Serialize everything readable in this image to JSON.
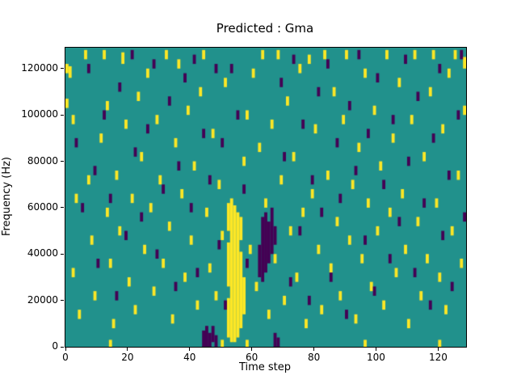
{
  "chart_data": {
    "type": "heatmap",
    "title": "Predicted : Gma",
    "xlabel": "Time step",
    "ylabel": "Frequency (Hz)",
    "xlim": [
      0,
      129
    ],
    "ylim": [
      0,
      129000
    ],
    "xticks": [
      0,
      20,
      40,
      60,
      80,
      100,
      120
    ],
    "yticks": [
      0,
      20000,
      40000,
      60000,
      80000,
      100000,
      120000
    ],
    "grid": false,
    "legend": false,
    "colors": {
      "background": "#21918c",
      "high": "#fde725",
      "low": "#440154"
    },
    "freq_unit_hz": 1000,
    "yellow_runs": [
      [
        0,
        103,
        106
      ],
      [
        0,
        118,
        121
      ],
      [
        1,
        116,
        120
      ],
      [
        2,
        96,
        99
      ],
      [
        2,
        30,
        33
      ],
      [
        3,
        62,
        65
      ],
      [
        4,
        12,
        15
      ],
      [
        6,
        124,
        127
      ],
      [
        7,
        70,
        73
      ],
      [
        8,
        44,
        47
      ],
      [
        9,
        20,
        23
      ],
      [
        11,
        88,
        91
      ],
      [
        12,
        124,
        127
      ],
      [
        13,
        102,
        105
      ],
      [
        13,
        56,
        59
      ],
      [
        14,
        34,
        37
      ],
      [
        14,
        0,
        2
      ],
      [
        15,
        8,
        11
      ],
      [
        16,
        72,
        75
      ],
      [
        17,
        48,
        51
      ],
      [
        18,
        122,
        126
      ],
      [
        19,
        94,
        97
      ],
      [
        20,
        26,
        29
      ],
      [
        21,
        62,
        65
      ],
      [
        22,
        14,
        17
      ],
      [
        23,
        106,
        109
      ],
      [
        24,
        80,
        83
      ],
      [
        25,
        40,
        43
      ],
      [
        26,
        116,
        119
      ],
      [
        27,
        58,
        61
      ],
      [
        28,
        22,
        25
      ],
      [
        29,
        96,
        99
      ],
      [
        30,
        70,
        73
      ],
      [
        31,
        34,
        37
      ],
      [
        32,
        124,
        127
      ],
      [
        33,
        50,
        53
      ],
      [
        34,
        10,
        13
      ],
      [
        35,
        86,
        89
      ],
      [
        36,
        120,
        123
      ],
      [
        37,
        64,
        67
      ],
      [
        38,
        28,
        31
      ],
      [
        39,
        100,
        103
      ],
      [
        40,
        44,
        47
      ],
      [
        41,
        76,
        79
      ],
      [
        42,
        16,
        19
      ],
      [
        43,
        108,
        111
      ],
      [
        44,
        124,
        127
      ],
      [
        45,
        56,
        59
      ],
      [
        46,
        32,
        35
      ],
      [
        47,
        90,
        93
      ],
      [
        48,
        20,
        23
      ],
      [
        49,
        68,
        71
      ],
      [
        50,
        0,
        2
      ],
      [
        50,
        46,
        49
      ],
      [
        51,
        112,
        115
      ],
      [
        52,
        4,
        20
      ],
      [
        52,
        26,
        44
      ],
      [
        52,
        50,
        61
      ],
      [
        53,
        2,
        63
      ],
      [
        54,
        2,
        60
      ],
      [
        55,
        4,
        57
      ],
      [
        56,
        8,
        40
      ],
      [
        56,
        46,
        55
      ],
      [
        57,
        14,
        29
      ],
      [
        57,
        78,
        81
      ],
      [
        58,
        0,
        2
      ],
      [
        58,
        98,
        101
      ],
      [
        59,
        40,
        43
      ],
      [
        60,
        116,
        119
      ],
      [
        61,
        24,
        27
      ],
      [
        62,
        84,
        87
      ],
      [
        63,
        124,
        127
      ],
      [
        64,
        60,
        63
      ],
      [
        65,
        12,
        15
      ],
      [
        66,
        94,
        97
      ],
      [
        67,
        36,
        39
      ],
      [
        68,
        124,
        127
      ],
      [
        69,
        70,
        73
      ],
      [
        70,
        18,
        21
      ],
      [
        71,
        104,
        107
      ],
      [
        72,
        48,
        51
      ],
      [
        73,
        80,
        83
      ],
      [
        74,
        28,
        31
      ],
      [
        75,
        118,
        121
      ],
      [
        76,
        56,
        59
      ],
      [
        77,
        8,
        11
      ],
      [
        78,
        122,
        125
      ],
      [
        79,
        64,
        67
      ],
      [
        80,
        92,
        95
      ],
      [
        81,
        40,
        43
      ],
      [
        82,
        14,
        17
      ],
      [
        83,
        124,
        127
      ],
      [
        84,
        72,
        75
      ],
      [
        85,
        32,
        35
      ],
      [
        86,
        108,
        111
      ],
      [
        87,
        52,
        55
      ],
      [
        88,
        20,
        23
      ],
      [
        89,
        96,
        99
      ],
      [
        90,
        124,
        127
      ],
      [
        91,
        44,
        47
      ],
      [
        92,
        68,
        71
      ],
      [
        93,
        10,
        13
      ],
      [
        94,
        84,
        87
      ],
      [
        95,
        36,
        39
      ],
      [
        96,
        0,
        2
      ],
      [
        96,
        116,
        119
      ],
      [
        97,
        60,
        63
      ],
      [
        98,
        24,
        27
      ],
      [
        99,
        100,
        103
      ],
      [
        100,
        48,
        51
      ],
      [
        101,
        76,
        79
      ],
      [
        102,
        16,
        19
      ],
      [
        103,
        124,
        127
      ],
      [
        104,
        56,
        59
      ],
      [
        105,
        88,
        91
      ],
      [
        106,
        30,
        33
      ],
      [
        107,
        112,
        115
      ],
      [
        108,
        64,
        67
      ],
      [
        109,
        40,
        43
      ],
      [
        110,
        8,
        11
      ],
      [
        111,
        96,
        99
      ],
      [
        112,
        124,
        127
      ],
      [
        113,
        52,
        55
      ],
      [
        114,
        20,
        23
      ],
      [
        115,
        80,
        83
      ],
      [
        116,
        36,
        39
      ],
      [
        117,
        108,
        111
      ],
      [
        118,
        124,
        127
      ],
      [
        119,
        60,
        63
      ],
      [
        120,
        0,
        2
      ],
      [
        120,
        28,
        31
      ],
      [
        121,
        92,
        95
      ],
      [
        122,
        14,
        17
      ],
      [
        123,
        116,
        119
      ],
      [
        124,
        48,
        51
      ],
      [
        125,
        124,
        127
      ],
      [
        126,
        72,
        75
      ],
      [
        127,
        34,
        37
      ],
      [
        128,
        100,
        103
      ],
      [
        128,
        120,
        124
      ]
    ],
    "purple_runs": [
      [
        3,
        86,
        89
      ],
      [
        5,
        58,
        61
      ],
      [
        7,
        118,
        121
      ],
      [
        9,
        74,
        77
      ],
      [
        10,
        34,
        37
      ],
      [
        12,
        98,
        101
      ],
      [
        14,
        62,
        65
      ],
      [
        16,
        20,
        23
      ],
      [
        17,
        110,
        113
      ],
      [
        19,
        46,
        49
      ],
      [
        21,
        124,
        127
      ],
      [
        22,
        82,
        85
      ],
      [
        24,
        54,
        57
      ],
      [
        26,
        92,
        95
      ],
      [
        28,
        120,
        123
      ],
      [
        29,
        38,
        41
      ],
      [
        31,
        66,
        69
      ],
      [
        33,
        104,
        107
      ],
      [
        35,
        24,
        27
      ],
      [
        36,
        76,
        79
      ],
      [
        38,
        114,
        117
      ],
      [
        40,
        58,
        61
      ],
      [
        41,
        122,
        125
      ],
      [
        42,
        30,
        33
      ],
      [
        44,
        0,
        6
      ],
      [
        45,
        0,
        8
      ],
      [
        46,
        0,
        5
      ],
      [
        47,
        2,
        8
      ],
      [
        48,
        0,
        4
      ],
      [
        44,
        90,
        93
      ],
      [
        46,
        70,
        73
      ],
      [
        48,
        118,
        121
      ],
      [
        49,
        42,
        45
      ],
      [
        50,
        86,
        89
      ],
      [
        51,
        16,
        19
      ],
      [
        53,
        118,
        121
      ],
      [
        55,
        98,
        101
      ],
      [
        57,
        66,
        69
      ],
      [
        58,
        34,
        37
      ],
      [
        62,
        30,
        43
      ],
      [
        63,
        28,
        55
      ],
      [
        64,
        32,
        57
      ],
      [
        65,
        36,
        53
      ],
      [
        66,
        40,
        59
      ],
      [
        67,
        44,
        51
      ],
      [
        67,
        0,
        5
      ],
      [
        68,
        0,
        3
      ],
      [
        69,
        112,
        115
      ],
      [
        70,
        80,
        83
      ],
      [
        72,
        26,
        29
      ],
      [
        73,
        122,
        125
      ],
      [
        75,
        48,
        51
      ],
      [
        76,
        94,
        97
      ],
      [
        78,
        18,
        21
      ],
      [
        79,
        70,
        73
      ],
      [
        81,
        108,
        111
      ],
      [
        82,
        56,
        59
      ],
      [
        84,
        120,
        123
      ],
      [
        85,
        28,
        31
      ],
      [
        87,
        86,
        89
      ],
      [
        88,
        62,
        65
      ],
      [
        90,
        12,
        15
      ],
      [
        91,
        102,
        105
      ],
      [
        93,
        74,
        77
      ],
      [
        94,
        124,
        127
      ],
      [
        96,
        44,
        47
      ],
      [
        97,
        90,
        93
      ],
      [
        99,
        22,
        25
      ],
      [
        100,
        114,
        117
      ],
      [
        102,
        68,
        71
      ],
      [
        104,
        36,
        39
      ],
      [
        105,
        96,
        99
      ],
      [
        107,
        52,
        55
      ],
      [
        109,
        122,
        125
      ],
      [
        110,
        78,
        81
      ],
      [
        112,
        30,
        33
      ],
      [
        113,
        106,
        109
      ],
      [
        115,
        60,
        63
      ],
      [
        117,
        16,
        19
      ],
      [
        118,
        88,
        91
      ],
      [
        120,
        118,
        121
      ],
      [
        121,
        46,
        49
      ],
      [
        123,
        72,
        75
      ],
      [
        124,
        24,
        27
      ],
      [
        126,
        98,
        101
      ],
      [
        127,
        124,
        127
      ],
      [
        128,
        54,
        57
      ]
    ]
  }
}
